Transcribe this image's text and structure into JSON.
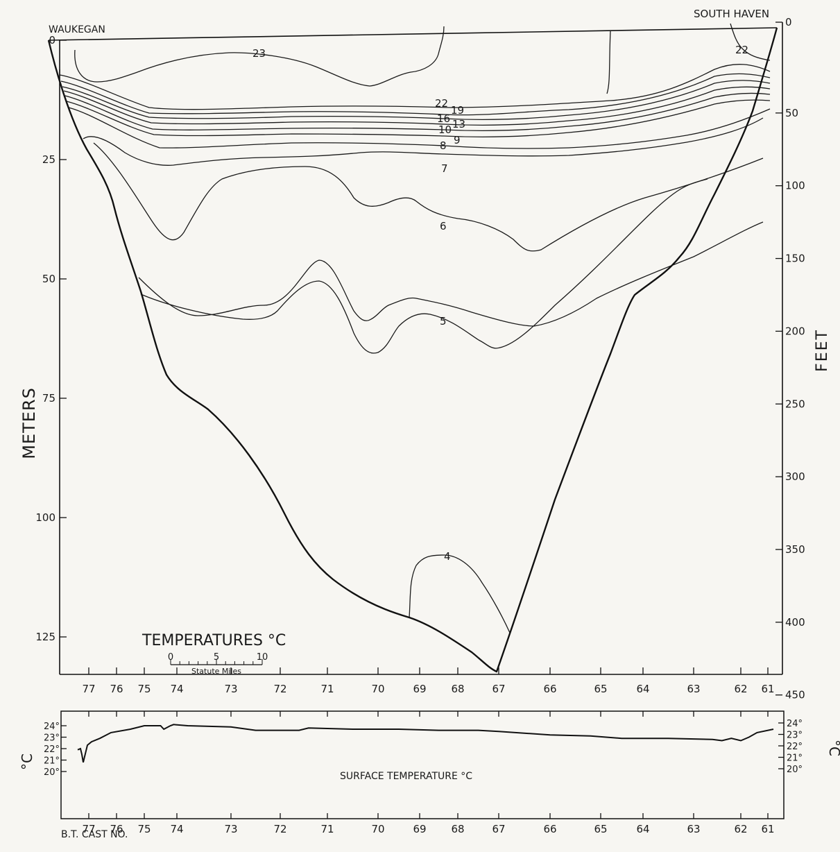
{
  "chart_data": [
    {
      "type": "contour",
      "title": "TEMPERATURES °C",
      "left_station": "WAUKEGAN",
      "right_station": "SOUTH HAVEN",
      "ylabel_left": "METERS",
      "ylabel_right": "FEET",
      "ylim_meters": [
        0,
        136
      ],
      "left_ticks": [
        {
          "label": "0",
          "value": 0
        },
        {
          "label": "25",
          "value": 25
        },
        {
          "label": "50",
          "value": 50
        },
        {
          "label": "75",
          "value": 75
        },
        {
          "label": "100",
          "value": 100
        },
        {
          "label": "125",
          "value": 125
        }
      ],
      "right_ticks": [
        {
          "label": "0",
          "value": 0
        },
        {
          "label": "50",
          "value": 50
        },
        {
          "label": "100",
          "value": 100
        },
        {
          "label": "150",
          "value": 150
        },
        {
          "label": "200",
          "value": 200
        },
        {
          "label": "250",
          "value": 250
        },
        {
          "label": "300",
          "value": 300
        },
        {
          "label": "350",
          "value": 350
        },
        {
          "label": "400",
          "value": 400
        },
        {
          "label": "450",
          "value": 450
        }
      ],
      "cast_numbers": [
        "77",
        "76",
        "75",
        "74",
        "73",
        "72",
        "71",
        "70",
        "69",
        "68",
        "67",
        "66",
        "65",
        "64",
        "63",
        "62",
        "61"
      ],
      "scale_bar": {
        "title": "Statute Miles",
        "labels": [
          "0",
          "5",
          "10"
        ]
      },
      "contour_labels": [
        "23",
        "22",
        "22",
        "19",
        "16",
        "13",
        "10",
        "9",
        "8",
        "7",
        "6",
        "5",
        "4"
      ]
    },
    {
      "type": "line",
      "title": "SURFACE TEMPERATURE °C",
      "xlabel": "B.T. CAST NO.",
      "ylabel": "°C",
      "ylim": [
        20,
        24
      ],
      "left_ticks": [
        "24°",
        "23°",
        "22°",
        "21°",
        "20°"
      ],
      "right_ticks": [
        "24°",
        "23°",
        "22°",
        "21°",
        "20°"
      ],
      "cast_numbers": [
        "77",
        "76",
        "75",
        "74",
        "73",
        "72",
        "71",
        "70",
        "69",
        "68",
        "67",
        "66",
        "65",
        "64",
        "63",
        "62",
        "61"
      ],
      "series_x_cast": [
        77.4,
        77.3,
        77.25,
        77.2,
        77.15,
        77.05,
        76.9,
        76.6,
        76.2,
        75.5,
        75,
        74.5,
        74.4,
        74.2,
        74.1,
        73.8,
        73,
        72.5,
        71.6,
        71.4,
        70.5,
        69.5,
        68.5,
        67.5,
        67,
        66,
        65.2,
        64.5,
        63.5,
        62.6,
        62.4,
        62.2,
        62,
        61.7,
        61.4,
        60.8
      ],
      "series_y": [
        21.9,
        22.0,
        21.5,
        20.8,
        21.3,
        22.3,
        22.6,
        22.9,
        23.4,
        23.7,
        24.0,
        24.0,
        23.7,
        24.0,
        24.1,
        24.0,
        23.9,
        23.6,
        23.6,
        23.8,
        23.7,
        23.7,
        23.6,
        23.6,
        23.5,
        23.2,
        23.1,
        22.9,
        22.9,
        22.8,
        22.7,
        22.9,
        22.7,
        23.0,
        23.4,
        23.7
      ]
    }
  ]
}
